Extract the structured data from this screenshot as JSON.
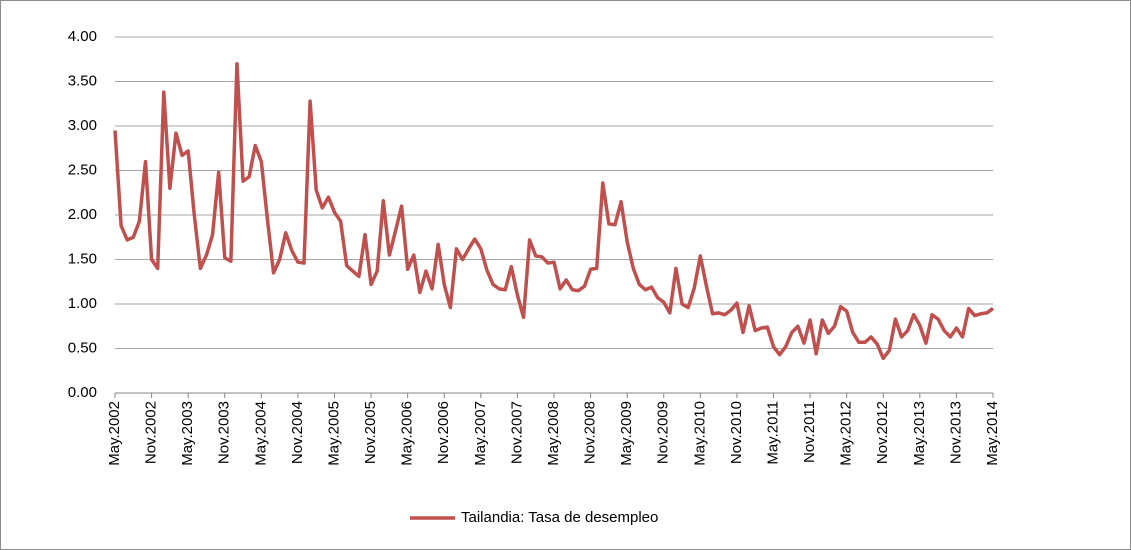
{
  "chart_data": {
    "type": "line",
    "categories": [
      "May.2002",
      null,
      null,
      null,
      null,
      null,
      "Nov.2002",
      null,
      null,
      null,
      null,
      null,
      "May.2003",
      null,
      null,
      null,
      null,
      null,
      "Nov.2003",
      null,
      null,
      null,
      null,
      null,
      "May.2004",
      null,
      null,
      null,
      null,
      null,
      "Nov.2004",
      null,
      null,
      null,
      null,
      null,
      "May.2005",
      null,
      null,
      null,
      null,
      null,
      "Nov.2005",
      null,
      null,
      null,
      null,
      null,
      "May.2006",
      null,
      null,
      null,
      null,
      null,
      "Nov.2006",
      null,
      null,
      null,
      null,
      null,
      "May.2007",
      null,
      null,
      null,
      null,
      null,
      "Nov.2007",
      null,
      null,
      null,
      null,
      null,
      "May.2008",
      null,
      null,
      null,
      null,
      null,
      "Nov.2008",
      null,
      null,
      null,
      null,
      null,
      "May.2009",
      null,
      null,
      null,
      null,
      null,
      "Nov.2009",
      null,
      null,
      null,
      null,
      null,
      "May.2010",
      null,
      null,
      null,
      null,
      null,
      "Nov.2010",
      null,
      null,
      null,
      null,
      null,
      "May.2011",
      null,
      null,
      null,
      null,
      null,
      "Nov.2011",
      null,
      null,
      null,
      null,
      null,
      "May.2012",
      null,
      null,
      null,
      null,
      null,
      "Nov.2012",
      null,
      null,
      null,
      null,
      null,
      "May.2013",
      null,
      null,
      null,
      null,
      null,
      "Nov.2013",
      null,
      null,
      null,
      null,
      null,
      "May.2014"
    ],
    "series": [
      {
        "name": "Tailandia: Tasa de desempleo",
        "color": "#c0504d",
        "values": [
          2.95,
          1.88,
          1.72,
          1.75,
          1.93,
          2.6,
          1.5,
          1.4,
          3.38,
          2.3,
          2.92,
          2.67,
          2.72,
          2.0,
          1.4,
          1.55,
          1.78,
          2.48,
          1.52,
          1.48,
          3.7,
          2.38,
          2.43,
          2.78,
          2.6,
          1.95,
          1.35,
          1.5,
          1.8,
          1.6,
          1.47,
          1.46,
          3.28,
          2.28,
          2.08,
          2.2,
          2.03,
          1.93,
          1.43,
          1.37,
          1.31,
          1.78,
          1.22,
          1.37,
          2.16,
          1.55,
          1.82,
          2.1,
          1.39,
          1.55,
          1.13,
          1.37,
          1.17,
          1.67,
          1.22,
          0.96,
          1.62,
          1.5,
          1.62,
          1.73,
          1.62,
          1.38,
          1.22,
          1.17,
          1.16,
          1.42,
          1.1,
          0.85,
          1.72,
          1.54,
          1.53,
          1.46,
          1.47,
          1.17,
          1.27,
          1.16,
          1.15,
          1.2,
          1.39,
          1.4,
          2.36,
          1.9,
          1.89,
          2.15,
          1.7,
          1.4,
          1.22,
          1.16,
          1.19,
          1.07,
          1.02,
          0.9,
          1.4,
          1.0,
          0.96,
          1.18,
          1.54,
          1.2,
          0.89,
          0.9,
          0.88,
          0.93,
          1.01,
          0.68,
          0.98,
          0.7,
          0.73,
          0.74,
          0.52,
          0.43,
          0.52,
          0.68,
          0.75,
          0.56,
          0.82,
          0.44,
          0.82,
          0.67,
          0.75,
          0.97,
          0.92,
          0.68,
          0.57,
          0.57,
          0.63,
          0.55,
          0.39,
          0.48,
          0.83,
          0.63,
          0.7,
          0.88,
          0.76,
          0.56,
          0.88,
          0.83,
          0.7,
          0.63,
          0.73,
          0.63,
          0.95,
          0.87,
          0.89,
          0.9,
          0.95
        ]
      }
    ],
    "ylim": [
      0,
      4
    ],
    "yticks": [
      {
        "value": 0,
        "label": "0.00"
      },
      {
        "value": 0.5,
        "label": "0.50"
      },
      {
        "value": 1,
        "label": "1.00"
      },
      {
        "value": 1.5,
        "label": "1.50"
      },
      {
        "value": 2,
        "label": "2.00"
      },
      {
        "value": 2.5,
        "label": "2.50"
      },
      {
        "value": 3,
        "label": "3.00"
      },
      {
        "value": 3.5,
        "label": "3.50"
      },
      {
        "value": 4,
        "label": "4.00"
      }
    ],
    "grid": true,
    "legend": "bottom"
  }
}
